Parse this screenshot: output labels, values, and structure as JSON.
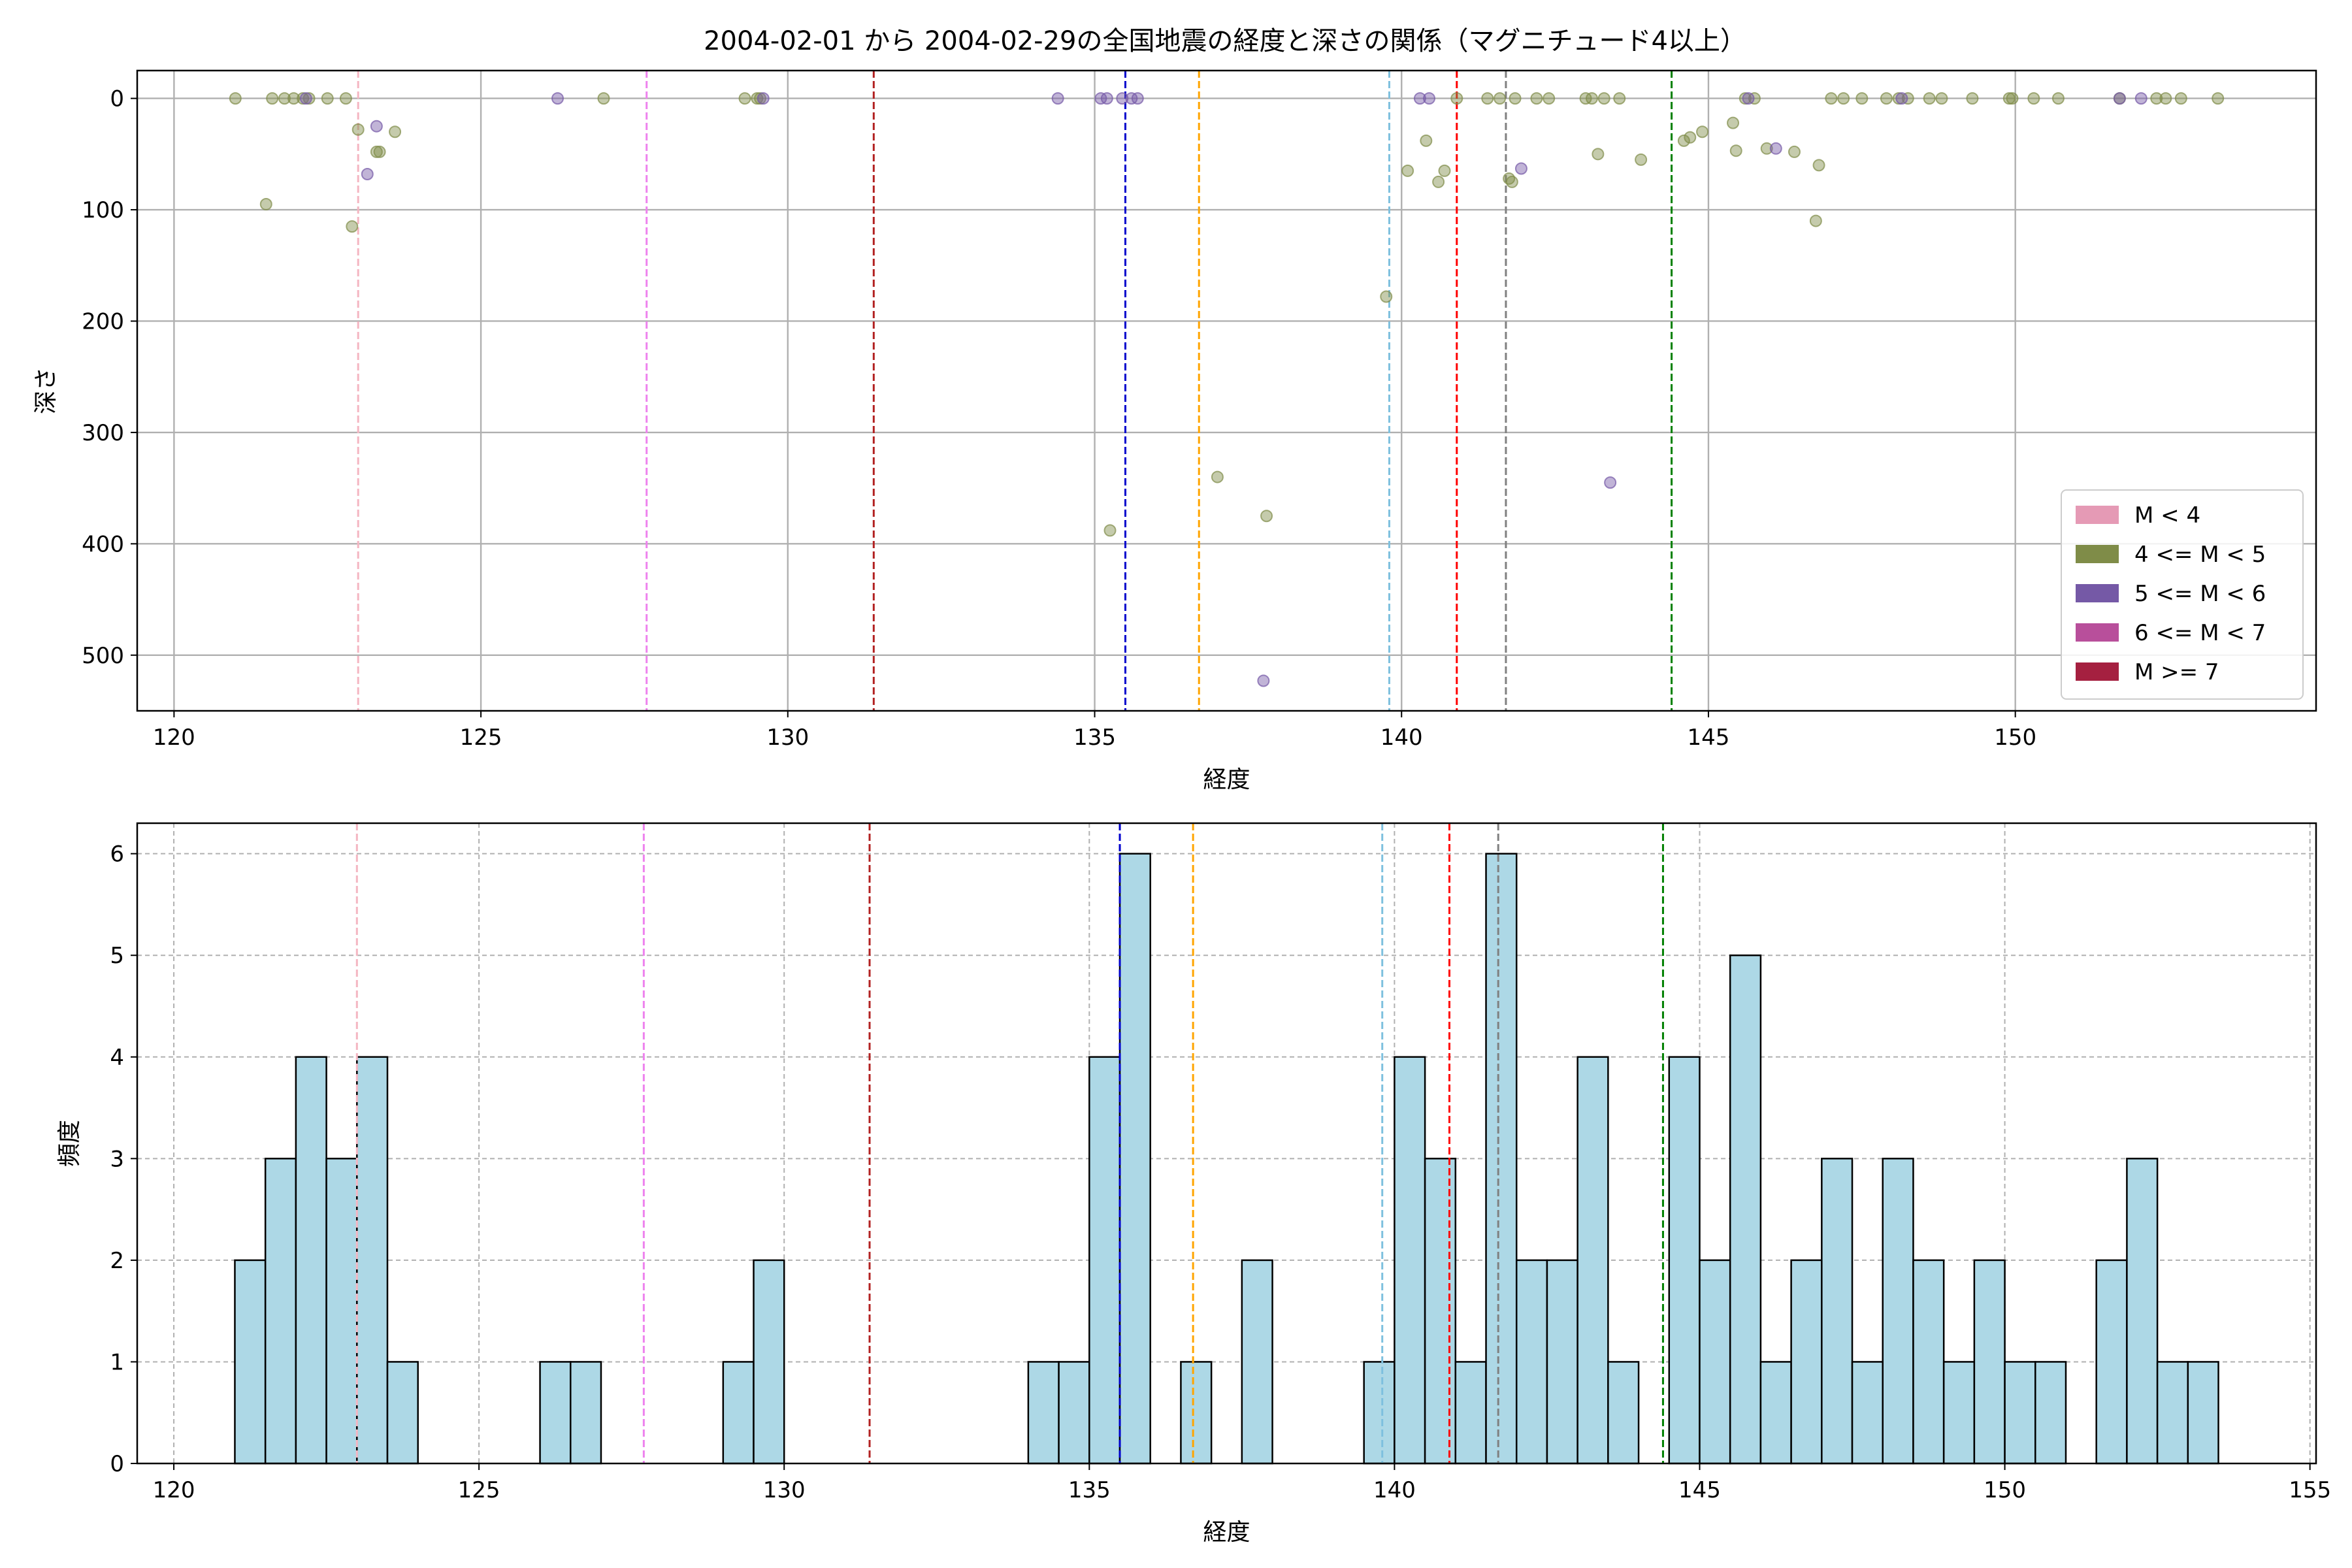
{
  "title": "2004-02-01 から 2004-02-29の全国地震の経度と深さの関係（マグニチュード4以上）",
  "chart_data": [
    {
      "type": "scatter",
      "title": "2004-02-01 から 2004-02-29の全国地震の経度と深さの関係（マグニチュード4以上）",
      "xlabel": "経度",
      "ylabel": "深さ",
      "xlim": [
        119.4,
        154.9
      ],
      "ylim": [
        0,
        550
      ],
      "ylim_display": [
        550,
        -25
      ],
      "y_inverted": true,
      "xticks": [
        120,
        125,
        130,
        135,
        140,
        145,
        150
      ],
      "yticks": [
        0,
        100,
        200,
        300,
        400,
        500
      ],
      "grid": true,
      "legend": {
        "placement": "lower-right",
        "entries": [
          {
            "label": "M < 4",
            "color": "#e59ab5"
          },
          {
            "label": "4 <= M < 5",
            "color": "#7f8c48"
          },
          {
            "label": "5 <= M < 6",
            "color": "#7559a6"
          },
          {
            "label": "6 <= M < 7",
            "color": "#b84f9b"
          },
          {
            "label": "M >= 7",
            "color": "#a52040"
          }
        ]
      },
      "vlines": [
        {
          "x": 123.0,
          "color": "#f4b6c2"
        },
        {
          "x": 127.7,
          "color": "#ee82ee"
        },
        {
          "x": 131.4,
          "color": "#b22222"
        },
        {
          "x": 135.5,
          "color": "#0000cd"
        },
        {
          "x": 136.7,
          "color": "#ffa500"
        },
        {
          "x": 139.8,
          "color": "#7ec0de"
        },
        {
          "x": 140.9,
          "color": "#ff0000"
        },
        {
          "x": 141.7,
          "color": "#808080"
        },
        {
          "x": 144.4,
          "color": "#008000"
        }
      ],
      "series": [
        {
          "name": "4 <= M < 5",
          "color": "#7f8c48",
          "points": [
            [
              121.0,
              0
            ],
            [
              121.5,
              95
            ],
            [
              121.6,
              0
            ],
            [
              121.8,
              0
            ],
            [
              121.95,
              0
            ],
            [
              122.1,
              0
            ],
            [
              122.2,
              0
            ],
            [
              122.5,
              0
            ],
            [
              122.8,
              0
            ],
            [
              122.9,
              115
            ],
            [
              123.0,
              28
            ],
            [
              123.3,
              48
            ],
            [
              123.35,
              48
            ],
            [
              123.6,
              30
            ],
            [
              127.0,
              0
            ],
            [
              129.3,
              0
            ],
            [
              129.5,
              0
            ],
            [
              129.55,
              0
            ],
            [
              135.25,
              388
            ],
            [
              137.0,
              340
            ],
            [
              137.8,
              375
            ],
            [
              139.75,
              178
            ],
            [
              140.1,
              65
            ],
            [
              140.4,
              38
            ],
            [
              140.6,
              75
            ],
            [
              140.7,
              65
            ],
            [
              140.9,
              0
            ],
            [
              141.4,
              0
            ],
            [
              141.6,
              0
            ],
            [
              141.75,
              72
            ],
            [
              141.8,
              75
            ],
            [
              141.85,
              0
            ],
            [
              142.2,
              0
            ],
            [
              142.4,
              0
            ],
            [
              143.0,
              0
            ],
            [
              143.1,
              0
            ],
            [
              143.2,
              50
            ],
            [
              143.3,
              0
            ],
            [
              143.55,
              0
            ],
            [
              143.9,
              55
            ],
            [
              144.6,
              38
            ],
            [
              144.7,
              35
            ],
            [
              144.9,
              30
            ],
            [
              145.4,
              22
            ],
            [
              145.45,
              47
            ],
            [
              145.6,
              0
            ],
            [
              145.75,
              0
            ],
            [
              145.95,
              45
            ],
            [
              146.4,
              48
            ],
            [
              146.75,
              110
            ],
            [
              146.8,
              60
            ],
            [
              147.0,
              0
            ],
            [
              147.2,
              0
            ],
            [
              147.5,
              0
            ],
            [
              147.9,
              0
            ],
            [
              148.1,
              0
            ],
            [
              148.25,
              0
            ],
            [
              148.6,
              0
            ],
            [
              148.8,
              0
            ],
            [
              149.3,
              0
            ],
            [
              149.9,
              0
            ],
            [
              149.95,
              0
            ],
            [
              150.3,
              0
            ],
            [
              150.7,
              0
            ],
            [
              151.7,
              0
            ],
            [
              152.3,
              0
            ],
            [
              152.45,
              0
            ],
            [
              152.7,
              0
            ],
            [
              153.3,
              0
            ]
          ]
        },
        {
          "name": "5 <= M < 6",
          "color": "#7559a6",
          "points": [
            [
              122.15,
              0
            ],
            [
              123.15,
              68
            ],
            [
              123.3,
              25
            ],
            [
              126.25,
              0
            ],
            [
              129.6,
              0
            ],
            [
              134.4,
              0
            ],
            [
              135.1,
              0
            ],
            [
              135.2,
              0
            ],
            [
              135.45,
              0
            ],
            [
              135.6,
              0
            ],
            [
              135.7,
              0
            ],
            [
              137.75,
              523
            ],
            [
              140.3,
              0
            ],
            [
              140.45,
              0
            ],
            [
              141.95,
              63
            ],
            [
              143.4,
              345
            ],
            [
              145.65,
              0
            ],
            [
              146.1,
              45
            ],
            [
              148.15,
              0
            ],
            [
              151.7,
              0
            ],
            [
              152.05,
              0
            ]
          ]
        }
      ]
    },
    {
      "type": "bar",
      "subtype": "histogram",
      "xlabel": "経度",
      "ylabel": "頻度",
      "xlim": [
        119.4,
        155.1
      ],
      "ylim": [
        0,
        6.3
      ],
      "xticks": [
        120,
        125,
        130,
        135,
        140,
        145,
        150,
        155
      ],
      "yticks": [
        0,
        1,
        2,
        3,
        4,
        5,
        6
      ],
      "grid": true,
      "bar_color": "#add8e6",
      "bin_width": 0.5,
      "bins": [
        {
          "x": 121.0,
          "count": 2
        },
        {
          "x": 121.5,
          "count": 3
        },
        {
          "x": 122.0,
          "count": 4
        },
        {
          "x": 122.5,
          "count": 3
        },
        {
          "x": 123.0,
          "count": 4
        },
        {
          "x": 123.5,
          "count": 1
        },
        {
          "x": 126.0,
          "count": 1
        },
        {
          "x": 126.5,
          "count": 1
        },
        {
          "x": 129.0,
          "count": 1
        },
        {
          "x": 129.5,
          "count": 2
        },
        {
          "x": 134.0,
          "count": 1
        },
        {
          "x": 134.5,
          "count": 1
        },
        {
          "x": 135.0,
          "count": 4
        },
        {
          "x": 135.5,
          "count": 6
        },
        {
          "x": 136.5,
          "count": 1
        },
        {
          "x": 137.5,
          "count": 2
        },
        {
          "x": 139.5,
          "count": 1
        },
        {
          "x": 140.0,
          "count": 4
        },
        {
          "x": 140.5,
          "count": 3
        },
        {
          "x": 141.0,
          "count": 1
        },
        {
          "x": 141.5,
          "count": 6
        },
        {
          "x": 142.0,
          "count": 2
        },
        {
          "x": 142.5,
          "count": 2
        },
        {
          "x": 143.0,
          "count": 4
        },
        {
          "x": 143.5,
          "count": 1
        },
        {
          "x": 144.5,
          "count": 4
        },
        {
          "x": 145.0,
          "count": 2
        },
        {
          "x": 145.5,
          "count": 5
        },
        {
          "x": 146.0,
          "count": 1
        },
        {
          "x": 146.5,
          "count": 2
        },
        {
          "x": 147.0,
          "count": 3
        },
        {
          "x": 147.5,
          "count": 1
        },
        {
          "x": 148.0,
          "count": 3
        },
        {
          "x": 148.5,
          "count": 2
        },
        {
          "x": 149.0,
          "count": 1
        },
        {
          "x": 149.5,
          "count": 2
        },
        {
          "x": 150.0,
          "count": 1
        },
        {
          "x": 150.5,
          "count": 1
        },
        {
          "x": 151.5,
          "count": 2
        },
        {
          "x": 152.0,
          "count": 3
        },
        {
          "x": 152.5,
          "count": 1
        },
        {
          "x": 153.0,
          "count": 1
        }
      ],
      "vlines": [
        {
          "x": 123.0,
          "color": "#f4b6c2"
        },
        {
          "x": 127.7,
          "color": "#ee82ee"
        },
        {
          "x": 131.4,
          "color": "#b22222"
        },
        {
          "x": 135.5,
          "color": "#0000cd"
        },
        {
          "x": 136.7,
          "color": "#ffa500"
        },
        {
          "x": 139.8,
          "color": "#7ec0de"
        },
        {
          "x": 140.9,
          "color": "#ff0000"
        },
        {
          "x": 141.7,
          "color": "#808080"
        },
        {
          "x": 144.4,
          "color": "#008000"
        }
      ]
    }
  ]
}
